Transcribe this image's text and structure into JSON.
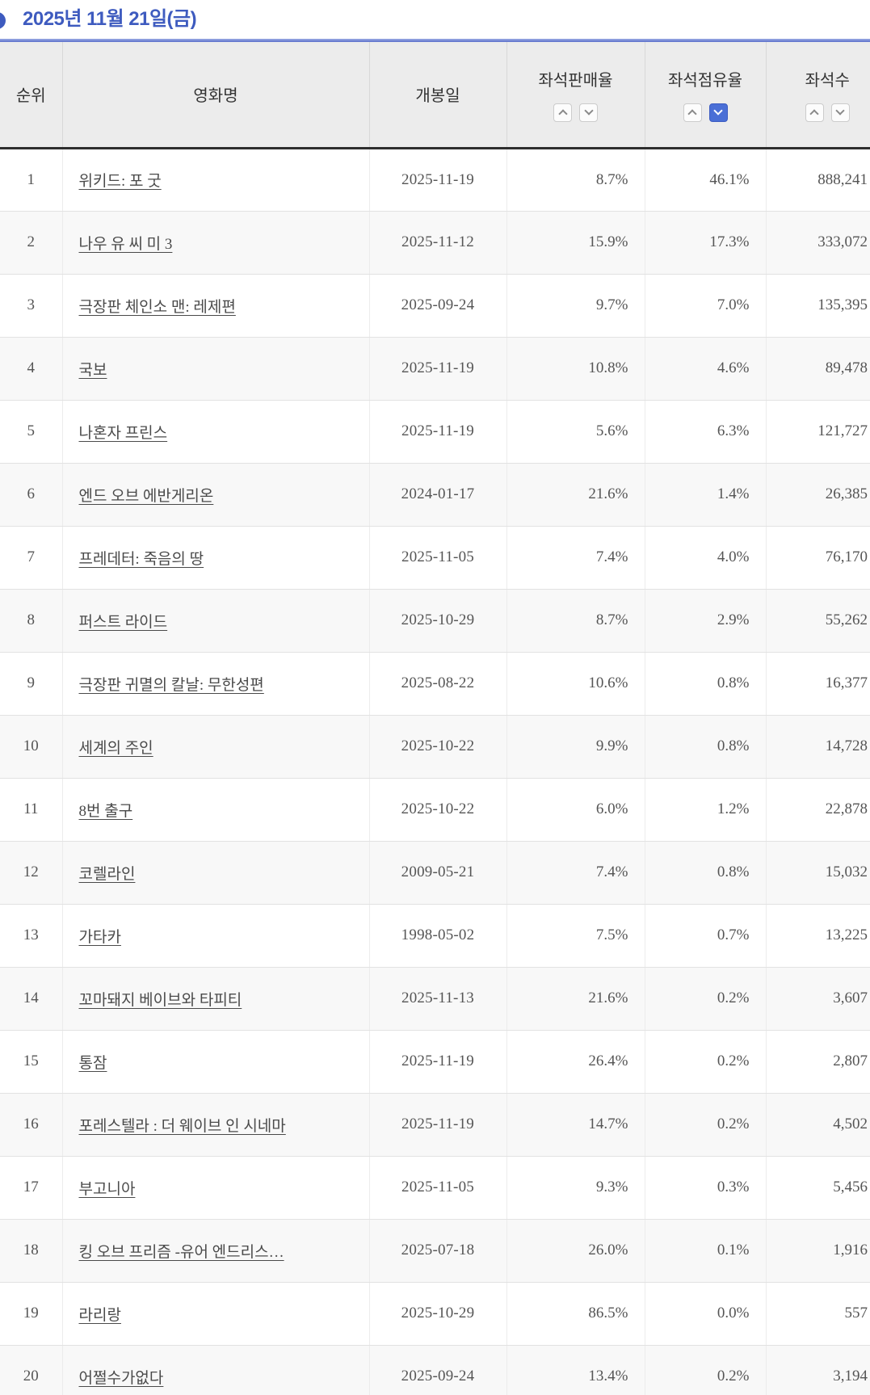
{
  "header": {
    "date_title": "2025년 11월 21일(금)",
    "bullet_icon": "circle-bullet"
  },
  "colors": {
    "title_blue": "#3e5bbf",
    "divider_blue_top": "#9cabe4",
    "divider_blue_bottom": "#5b6fca",
    "active_sort_blue": "#4a6fd6",
    "header_bg": "#ececec",
    "row_alt_bg": "#f8f8f8"
  },
  "table": {
    "columns": [
      {
        "key": "rank",
        "label": "순위",
        "sortable": false
      },
      {
        "key": "title",
        "label": "영화명",
        "sortable": true
      },
      {
        "key": "release",
        "label": "개봉일",
        "sortable": true
      },
      {
        "key": "sales_rate",
        "label": "좌석판매율",
        "sortable": true
      },
      {
        "key": "occupancy",
        "label": "좌석점유율",
        "sortable": true
      },
      {
        "key": "seats",
        "label": "좌석수",
        "sortable": true
      }
    ],
    "active_sort": {
      "key": "occupancy",
      "dir": "desc"
    },
    "sort_icons": {
      "asc": "chevron-up-icon",
      "desc": "chevron-down-icon"
    },
    "rows": [
      {
        "rank": "1",
        "title": "위키드: 포 굿",
        "release": "2025-11-19",
        "sales_rate": "8.7%",
        "occupancy": "46.1%",
        "seats": "888,241"
      },
      {
        "rank": "2",
        "title": "나우 유 씨 미 3",
        "release": "2025-11-12",
        "sales_rate": "15.9%",
        "occupancy": "17.3%",
        "seats": "333,072"
      },
      {
        "rank": "3",
        "title": "극장판 체인소 맨: 레제편",
        "release": "2025-09-24",
        "sales_rate": "9.7%",
        "occupancy": "7.0%",
        "seats": "135,395"
      },
      {
        "rank": "4",
        "title": "국보",
        "release": "2025-11-19",
        "sales_rate": "10.8%",
        "occupancy": "4.6%",
        "seats": "89,478"
      },
      {
        "rank": "5",
        "title": "나혼자 프린스",
        "release": "2025-11-19",
        "sales_rate": "5.6%",
        "occupancy": "6.3%",
        "seats": "121,727"
      },
      {
        "rank": "6",
        "title": "엔드 오브 에반게리온",
        "release": "2024-01-17",
        "sales_rate": "21.6%",
        "occupancy": "1.4%",
        "seats": "26,385"
      },
      {
        "rank": "7",
        "title": "프레데터: 죽음의 땅",
        "release": "2025-11-05",
        "sales_rate": "7.4%",
        "occupancy": "4.0%",
        "seats": "76,170"
      },
      {
        "rank": "8",
        "title": "퍼스트 라이드",
        "release": "2025-10-29",
        "sales_rate": "8.7%",
        "occupancy": "2.9%",
        "seats": "55,262"
      },
      {
        "rank": "9",
        "title": "극장판 귀멸의 칼날: 무한성편",
        "release": "2025-08-22",
        "sales_rate": "10.6%",
        "occupancy": "0.8%",
        "seats": "16,377"
      },
      {
        "rank": "10",
        "title": "세계의 주인",
        "release": "2025-10-22",
        "sales_rate": "9.9%",
        "occupancy": "0.8%",
        "seats": "14,728"
      },
      {
        "rank": "11",
        "title": "8번 출구",
        "release": "2025-10-22",
        "sales_rate": "6.0%",
        "occupancy": "1.2%",
        "seats": "22,878"
      },
      {
        "rank": "12",
        "title": "코렐라인",
        "release": "2009-05-21",
        "sales_rate": "7.4%",
        "occupancy": "0.8%",
        "seats": "15,032"
      },
      {
        "rank": "13",
        "title": "가타카",
        "release": "1998-05-02",
        "sales_rate": "7.5%",
        "occupancy": "0.7%",
        "seats": "13,225"
      },
      {
        "rank": "14",
        "title": "꼬마돼지 베이브와 타피티",
        "release": "2025-11-13",
        "sales_rate": "21.6%",
        "occupancy": "0.2%",
        "seats": "3,607"
      },
      {
        "rank": "15",
        "title": "통잠",
        "release": "2025-11-19",
        "sales_rate": "26.4%",
        "occupancy": "0.2%",
        "seats": "2,807"
      },
      {
        "rank": "16",
        "title": "포레스텔라 : 더 웨이브 인 시네마",
        "release": "2025-11-19",
        "sales_rate": "14.7%",
        "occupancy": "0.2%",
        "seats": "4,502"
      },
      {
        "rank": "17",
        "title": "부고니아",
        "release": "2025-11-05",
        "sales_rate": "9.3%",
        "occupancy": "0.3%",
        "seats": "5,456"
      },
      {
        "rank": "18",
        "title": "킹 오브 프리즘 -유어 엔드리스…",
        "release": "2025-07-18",
        "sales_rate": "26.0%",
        "occupancy": "0.1%",
        "seats": "1,916"
      },
      {
        "rank": "19",
        "title": "라리랑",
        "release": "2025-10-29",
        "sales_rate": "86.5%",
        "occupancy": "0.0%",
        "seats": "557"
      },
      {
        "rank": "20",
        "title": "어쩔수가없다",
        "release": "2025-09-24",
        "sales_rate": "13.4%",
        "occupancy": "0.2%",
        "seats": "3,194"
      }
    ]
  }
}
